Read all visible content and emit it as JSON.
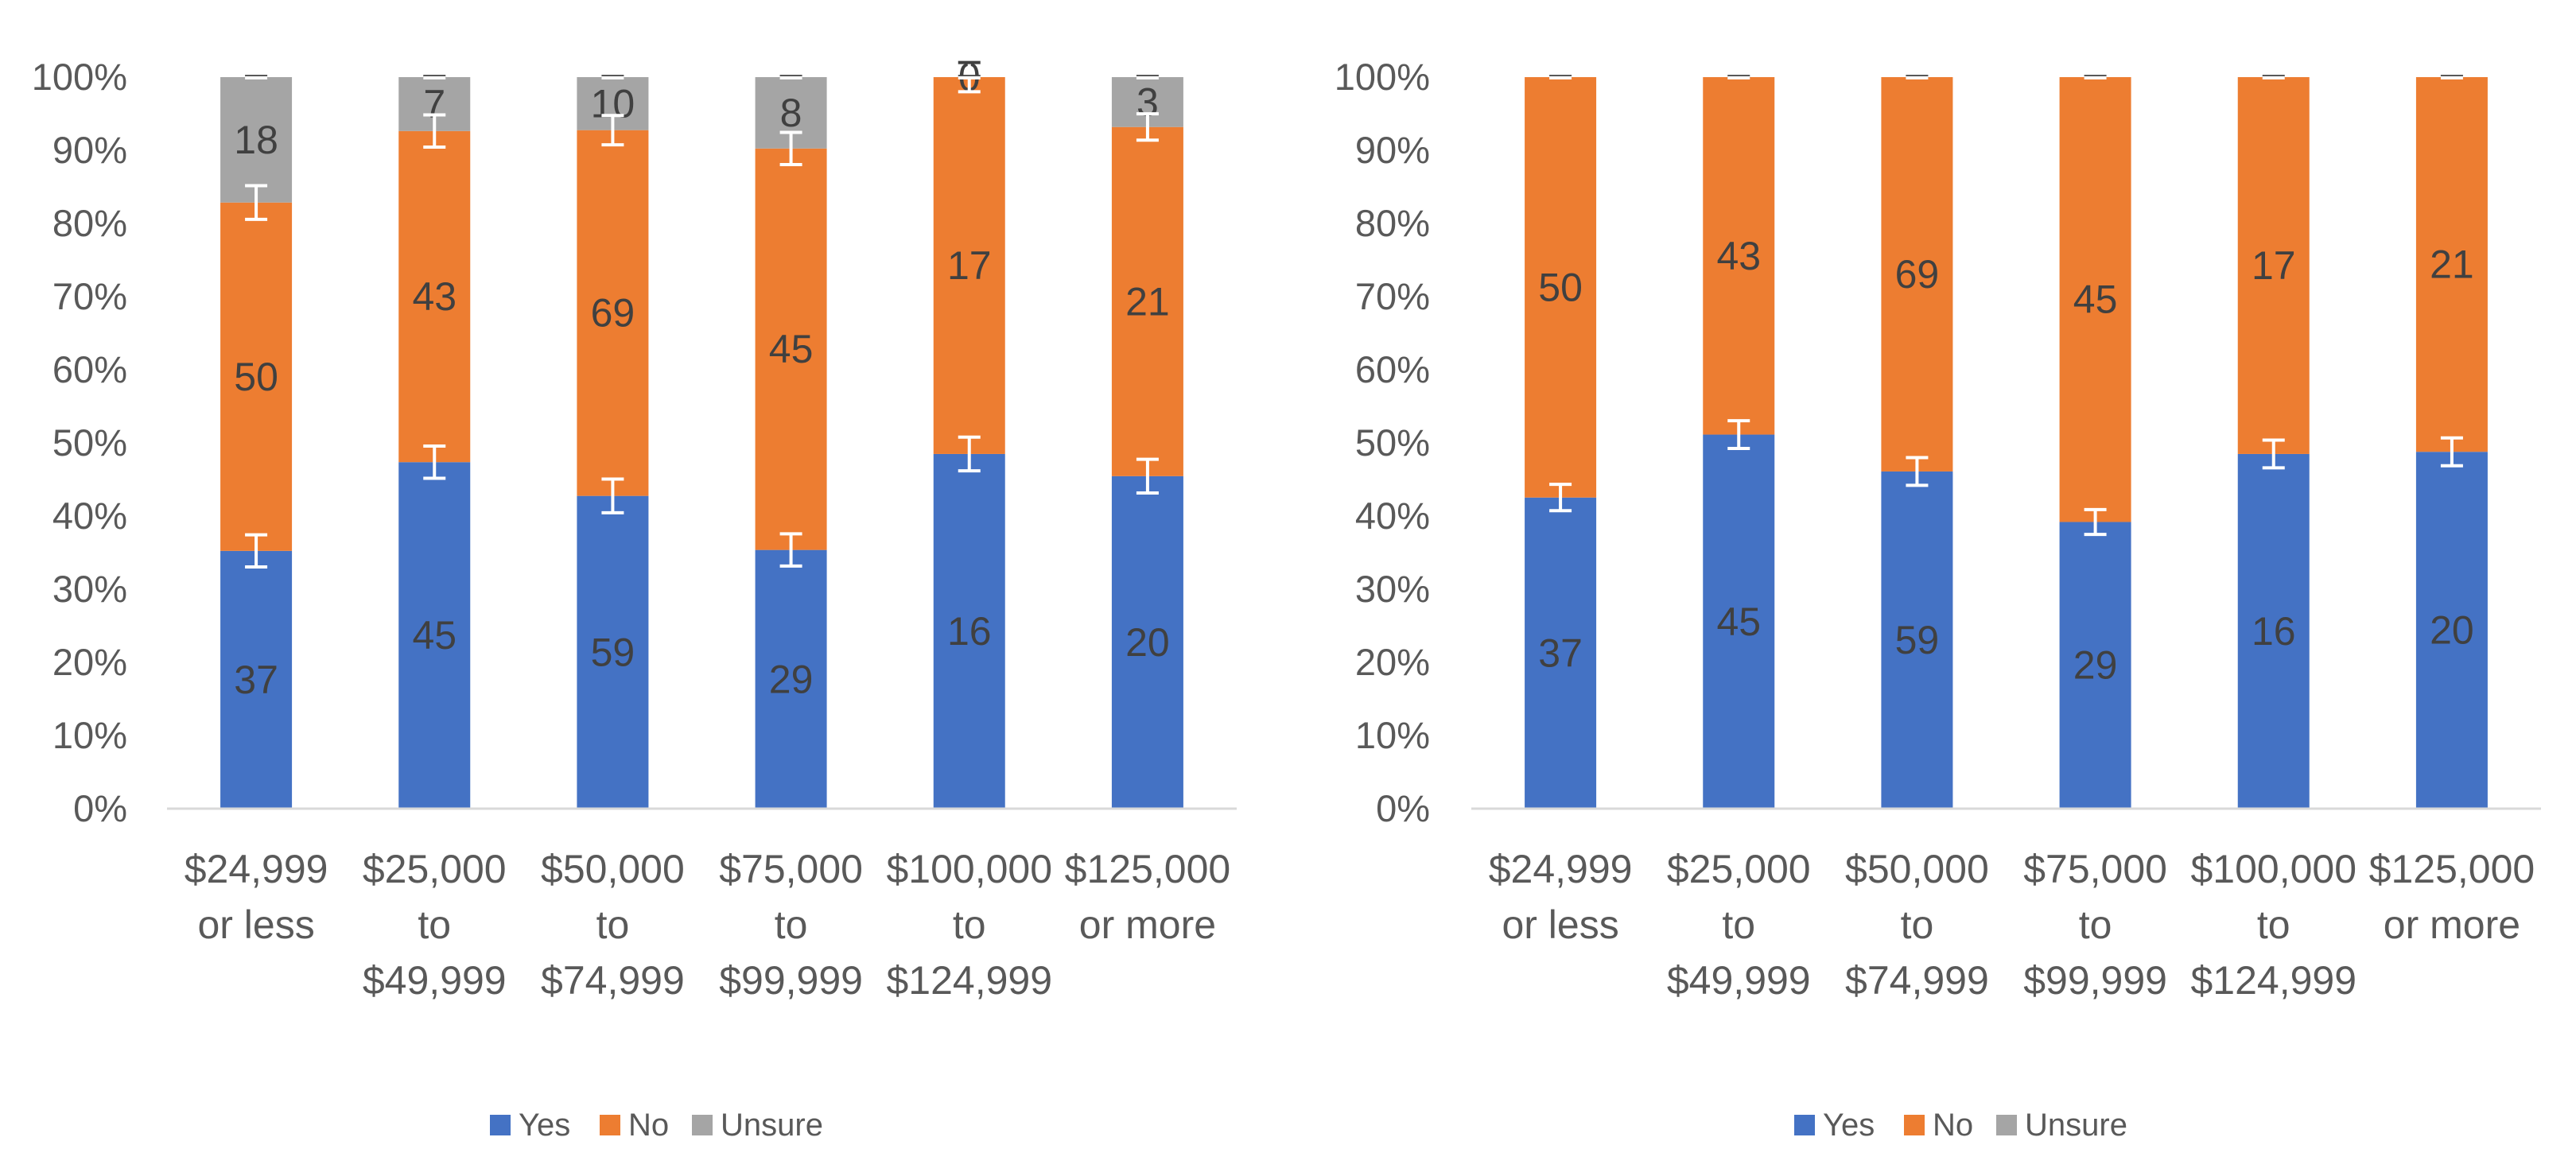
{
  "chart_data": [
    {
      "type": "bar",
      "stacked": "percent",
      "categories": [
        [
          "$24,999",
          "or less"
        ],
        [
          "$25,000",
          "to",
          "$49,999"
        ],
        [
          "$50,000",
          "to",
          "$74,999"
        ],
        [
          "$75,000",
          "to",
          "$99,999"
        ],
        [
          "$100,000",
          "to",
          "$124,999"
        ],
        [
          "$125,000",
          "or more"
        ]
      ],
      "series": [
        {
          "name": "Yes",
          "color": "#4472C4",
          "values": [
            37,
            45,
            59,
            29,
            16,
            20
          ],
          "error_bar_pct": [
            2.2,
            2.2,
            2.3,
            2.2,
            2.3,
            2.3
          ]
        },
        {
          "name": "No",
          "color": "#ED7D31",
          "values": [
            50,
            43,
            69,
            45,
            17,
            21
          ],
          "error_bar_pct": [
            2.3,
            2.2,
            2.0,
            2.2,
            2.0,
            1.8
          ]
        },
        {
          "name": "Unsure",
          "color": "#A5A5A5",
          "values": [
            18,
            7,
            10,
            8,
            0,
            3
          ],
          "error_bar_pct": [
            0.1,
            0.1,
            0.1,
            0.1,
            0.1,
            0.1
          ]
        }
      ],
      "ylim": [
        0,
        100
      ],
      "yticks": [
        "0%",
        "10%",
        "20%",
        "30%",
        "40%",
        "50%",
        "60%",
        "70%",
        "80%",
        "90%",
        "100%"
      ],
      "legend": "bottom",
      "title": "",
      "xlabel": "",
      "ylabel": ""
    },
    {
      "type": "bar",
      "stacked": "percent",
      "categories": [
        [
          "$24,999",
          "or less"
        ],
        [
          "$25,000",
          "to",
          "$49,999"
        ],
        [
          "$50,000",
          "to",
          "$74,999"
        ],
        [
          "$75,000",
          "to",
          "$99,999"
        ],
        [
          "$100,000",
          "to",
          "$124,999"
        ],
        [
          "$125,000",
          "or more"
        ]
      ],
      "series": [
        {
          "name": "Yes",
          "color": "#4472C4",
          "values": [
            37,
            45,
            59,
            29,
            16,
            20
          ],
          "error_bar_pct": [
            1.8,
            1.9,
            1.9,
            1.7,
            1.9,
            1.9
          ]
        },
        {
          "name": "No",
          "color": "#ED7D31",
          "values": [
            50,
            43,
            69,
            45,
            17,
            21
          ],
          "error_bar_pct": [
            0.1,
            0.1,
            0.1,
            0.1,
            0.1,
            0.1
          ]
        },
        {
          "name": "Unsure",
          "color": "#A5A5A5",
          "values": [
            0,
            0,
            0,
            0,
            0,
            0
          ],
          "error_bar_pct": [
            0,
            0,
            0,
            0,
            0,
            0
          ]
        }
      ],
      "ylim": [
        0,
        100
      ],
      "yticks": [
        "0%",
        "10%",
        "20%",
        "30%",
        "40%",
        "50%",
        "60%",
        "70%",
        "80%",
        "90%",
        "100%"
      ],
      "legend": "bottom",
      "title": "",
      "xlabel": "",
      "ylabel": ""
    }
  ]
}
